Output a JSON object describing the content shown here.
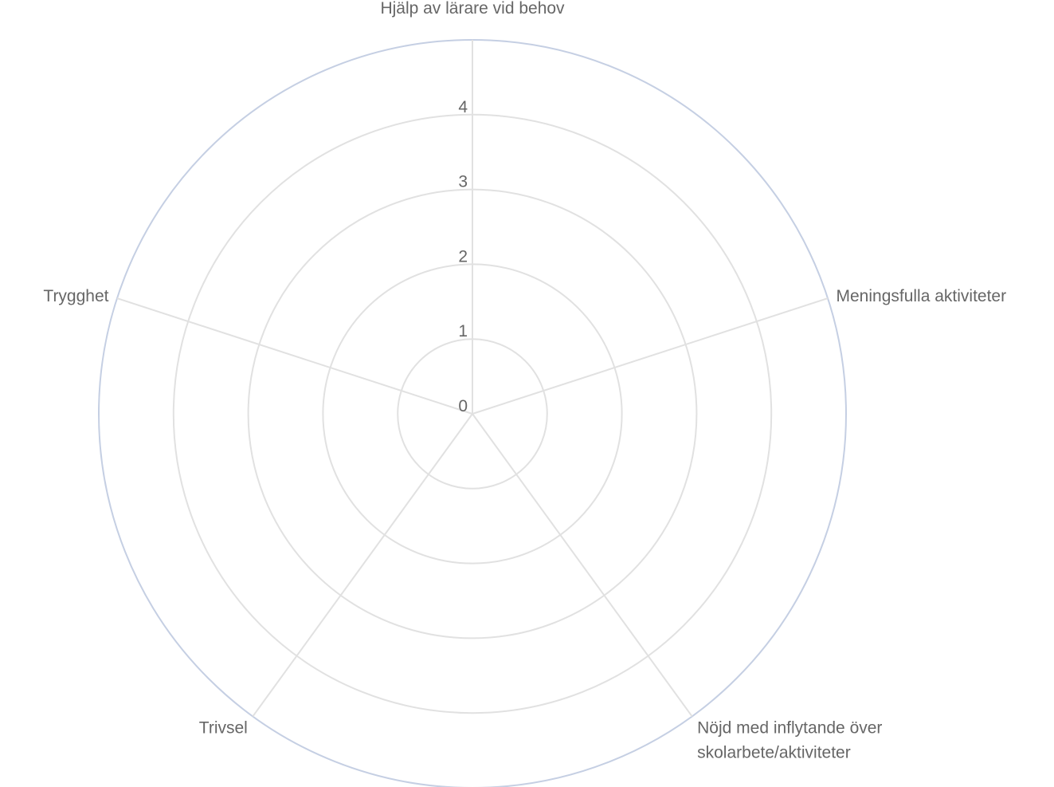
{
  "chart_data": {
    "type": "radar",
    "title": "",
    "axes": [
      {
        "label_lines": [
          "Hjälp av lärare vid behov"
        ]
      },
      {
        "label_lines": [
          "Meningsfulla aktiviteter"
        ]
      },
      {
        "label_lines": [
          "Nöjd med inflytande över",
          "skolarbete/aktiviteter"
        ]
      },
      {
        "label_lines": [
          "Trivsel"
        ]
      },
      {
        "label_lines": [
          "Trygghet"
        ]
      }
    ],
    "rlim": [
      0,
      5
    ],
    "ticks": [
      "0",
      "1",
      "2",
      "3",
      "4"
    ],
    "series": [],
    "grid": true,
    "legend": "none",
    "colors": {
      "grid": "#e1e1e1",
      "outer_ring": "#c5cfe3",
      "text": "#666666"
    }
  }
}
